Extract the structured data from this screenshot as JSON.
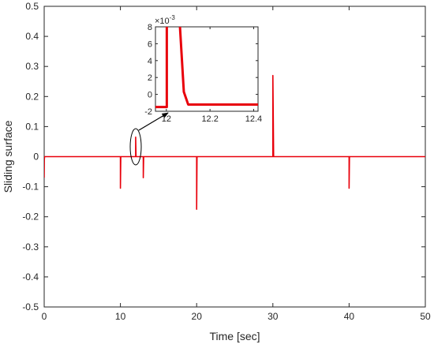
{
  "chart_data": {
    "type": "line",
    "title": "",
    "xlabel": "Time [sec]",
    "ylabel": "Sliding surface",
    "xlim": [
      0,
      50
    ],
    "ylim": [
      -0.5,
      0.5
    ],
    "xticks": [
      "0",
      "10",
      "20",
      "30",
      "40",
      "50"
    ],
    "yticks": [
      "-0.5",
      "-0.4",
      "-0.3",
      "-0.2",
      "-0.1",
      "0",
      "0.1",
      "0.2",
      "0.3",
      "0.4",
      "0.5"
    ],
    "grid": false,
    "legend": false,
    "series_color": "#e8000b",
    "series": [
      {
        "x": [
          0,
          0.02,
          0.05,
          10,
          10,
          10.05,
          12,
          12,
          12.05,
          13,
          13,
          13.05,
          20,
          20,
          20.05,
          30,
          30,
          30.1,
          40,
          40,
          40.05,
          50
        ],
        "y": [
          -0.07,
          -0.01,
          0,
          0,
          -0.105,
          0,
          0,
          0.065,
          0,
          0,
          -0.07,
          0,
          0,
          -0.175,
          0,
          0,
          0.27,
          0,
          0,
          -0.105,
          0,
          0
        ]
      }
    ],
    "inset": {
      "xlim": [
        11.95,
        12.42
      ],
      "ylim": [
        -2,
        8
      ],
      "y_multiplier_base": "×10",
      "y_multiplier_exp": "-3",
      "xticks": [
        "12",
        "12.2",
        "12.4"
      ],
      "yticks": [
        "-2",
        "0",
        "2",
        "4",
        "6",
        "8"
      ],
      "series": [
        {
          "x": [
            11.95,
            12.0,
            12.002,
            12.002,
            12.06,
            12.06,
            12.08,
            12.1,
            12.42
          ],
          "y": [
            -1.5,
            -1.5,
            -1.5,
            9,
            9,
            9,
            0.3,
            -1.2,
            -1.2
          ]
        }
      ]
    }
  }
}
